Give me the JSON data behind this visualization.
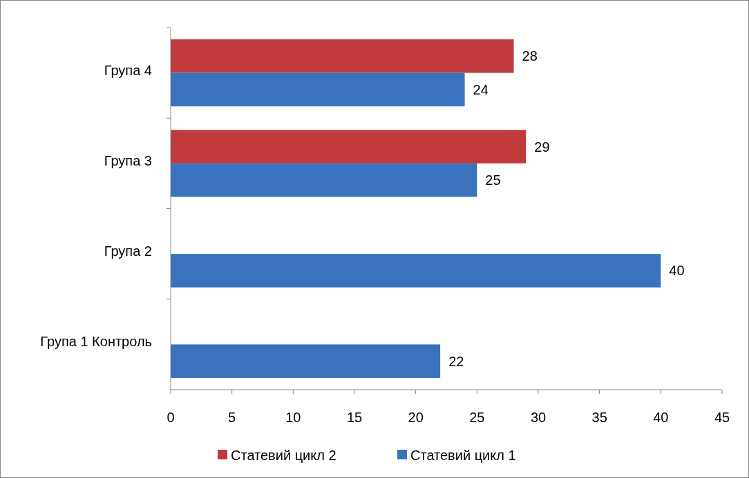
{
  "chart_data": {
    "type": "bar",
    "orientation": "horizontal",
    "categories": [
      "Група 4",
      "Група 3",
      "Група 2",
      "Група 1 Контроль"
    ],
    "series": [
      {
        "name": "Статевий цикл 2",
        "color": "#c0393b",
        "values": [
          28,
          29,
          null,
          null
        ]
      },
      {
        "name": "Статевий цикл 1",
        "color": "#3a72bd",
        "values": [
          24,
          25,
          40,
          22
        ]
      }
    ],
    "xlim": [
      0,
      45
    ],
    "xticks": [
      0,
      5,
      10,
      15,
      20,
      25,
      30,
      35,
      40,
      45
    ],
    "data_labels": true,
    "legend": "bottom",
    "grid": false
  }
}
